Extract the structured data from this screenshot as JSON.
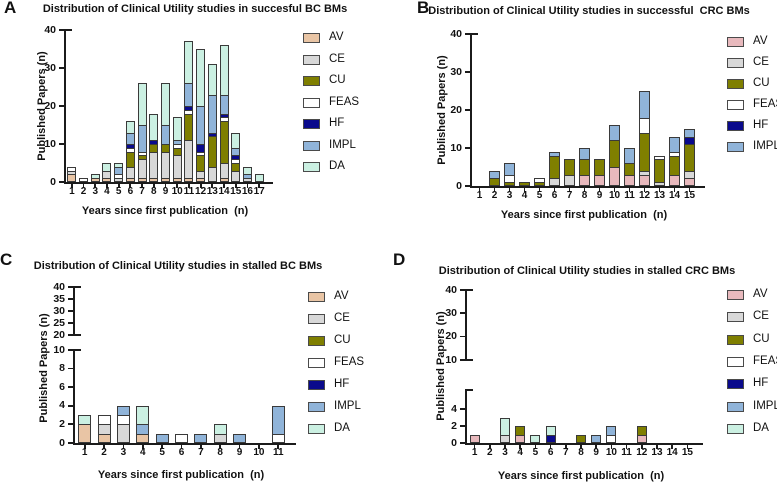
{
  "figure": {
    "panel_labels": [
      "A",
      "B",
      "C",
      "D"
    ]
  },
  "chart_data": [
    {
      "panel_label": "A",
      "type": "bar",
      "stacked": true,
      "title": "Distribution of Clinical Utility studies in succesful BC BMs",
      "xlabel": "Years since first publication  (n)",
      "ylabel": "Published Papers (n)",
      "categories": [
        "1",
        "2",
        "3",
        "4",
        "5",
        "6",
        "7",
        "8",
        "9",
        "10",
        "11",
        "12",
        "13",
        "14",
        "15",
        "16",
        "17"
      ],
      "legend": [
        "AV",
        "CE",
        "CU",
        "FEAS",
        "HF",
        "IMPL",
        "DA"
      ],
      "axis_segments": [
        {
          "min": 0,
          "max": 40,
          "ticks": [
            0,
            10,
            20,
            30,
            40
          ]
        }
      ],
      "colors": {
        "AV": "#E9C5A5",
        "CE": "#D8D8D8",
        "CU": "#7F7F00",
        "FEAS": "#FFFFFF",
        "HF": "#0A0A8C",
        "IMPL": "#90B4D9",
        "DA": "#CBF0E2"
      },
      "series": [
        {
          "name": "AV",
          "values": [
            2,
            0,
            1,
            1,
            0,
            1,
            1,
            1,
            1,
            1,
            1,
            1,
            0,
            1,
            0,
            0,
            0
          ]
        },
        {
          "name": "CE",
          "values": [
            1,
            0,
            0,
            2,
            1,
            3,
            5,
            7,
            7,
            6,
            10,
            2,
            4,
            4,
            3,
            1,
            0
          ]
        },
        {
          "name": "CU",
          "values": [
            0,
            0,
            0,
            0,
            0,
            4,
            1,
            2,
            2,
            2,
            7,
            4,
            8,
            11,
            2,
            0,
            0
          ]
        },
        {
          "name": "FEAS",
          "values": [
            1,
            1,
            0,
            0,
            1,
            1,
            1,
            0,
            0,
            1,
            1,
            1,
            0,
            1,
            1,
            0,
            0
          ]
        },
        {
          "name": "HF",
          "values": [
            0,
            0,
            0,
            0,
            0,
            1,
            0,
            1,
            0,
            0,
            1,
            2,
            1,
            1,
            1,
            0,
            0
          ]
        },
        {
          "name": "IMPL",
          "values": [
            0,
            0,
            0,
            0,
            2,
            3,
            7,
            0,
            5,
            1,
            6,
            10,
            10,
            5,
            2,
            1,
            0
          ]
        },
        {
          "name": "DA",
          "values": [
            0,
            0,
            1,
            2,
            1,
            3,
            11,
            7,
            11,
            6,
            11,
            15,
            8,
            13,
            4,
            2,
            2
          ]
        }
      ]
    },
    {
      "panel_label": "B",
      "type": "bar",
      "stacked": true,
      "title": "Distribution of Clinical Utility studies in successful  CRC BMs",
      "xlabel": "Years since first publication  (n)",
      "ylabel": "Published Papers (n)",
      "categories": [
        "1",
        "2",
        "3",
        "4",
        "5",
        "6",
        "7",
        "8",
        "9",
        "10",
        "11",
        "12",
        "13",
        "14",
        "15"
      ],
      "legend": [
        "AV",
        "CE",
        "CU",
        "FEAS",
        "HF",
        "IMPL"
      ],
      "axis_segments": [
        {
          "min": 0,
          "max": 40,
          "ticks": [
            0,
            10,
            20,
            30,
            40
          ]
        }
      ],
      "colors": {
        "AV": "#E8B9BD",
        "CE": "#D8D8D8",
        "CU": "#7F7F00",
        "FEAS": "#FFFFFF",
        "HF": "#0A0A8C",
        "IMPL": "#90B4D9",
        "DA": "#CBF0E2"
      },
      "series": [
        {
          "name": "AV",
          "values": [
            0,
            0,
            0,
            0,
            0,
            0,
            0,
            3,
            3,
            5,
            3,
            3,
            0,
            3,
            2
          ]
        },
        {
          "name": "CE",
          "values": [
            0,
            0,
            0,
            0,
            0,
            2,
            3,
            0,
            0,
            0,
            0,
            1,
            1,
            0,
            2
          ]
        },
        {
          "name": "CU",
          "values": [
            0,
            2,
            1,
            1,
            1,
            6,
            4,
            4,
            4,
            7,
            3,
            10,
            6,
            5,
            7
          ]
        },
        {
          "name": "FEAS",
          "values": [
            0,
            0,
            2,
            0,
            1,
            0,
            0,
            0,
            0,
            0,
            0,
            4,
            1,
            1,
            0
          ]
        },
        {
          "name": "HF",
          "values": [
            0,
            0,
            0,
            0,
            0,
            0,
            0,
            0,
            0,
            0,
            0,
            0,
            0,
            0,
            2
          ]
        },
        {
          "name": "IMPL",
          "values": [
            0,
            2,
            3,
            0,
            0,
            1,
            0,
            3,
            0,
            4,
            4,
            7,
            0,
            4,
            2
          ]
        }
      ]
    },
    {
      "panel_label": "C",
      "type": "bar",
      "stacked": true,
      "title": "Distribution of Clinical Utility studies in stalled BC BMs",
      "xlabel": "Years since first publication  (n)",
      "ylabel": "Published Papers (n)",
      "categories": [
        "1",
        "2",
        "3",
        "4",
        "5",
        "6",
        "7",
        "8",
        "9",
        "10",
        "11"
      ],
      "legend": [
        "AV",
        "CE",
        "CU",
        "FEAS",
        "HF",
        "IMPL",
        "DA"
      ],
      "axis_segments": [
        {
          "min": 0,
          "max": 10,
          "ticks": [
            0,
            2,
            4,
            6,
            8,
            10
          ]
        },
        {
          "min": 20,
          "max": 40,
          "ticks": [
            20,
            25,
            30,
            35,
            40
          ]
        }
      ],
      "colors": {
        "AV": "#E9C5A5",
        "CE": "#D8D8D8",
        "CU": "#7F7F00",
        "FEAS": "#FFFFFF",
        "HF": "#0A0A8C",
        "IMPL": "#90B4D9",
        "DA": "#CBF0E2"
      },
      "series": [
        {
          "name": "AV",
          "values": [
            2,
            1,
            0,
            1,
            0,
            0,
            0,
            0,
            0,
            0,
            0
          ]
        },
        {
          "name": "CE",
          "values": [
            0,
            1,
            2,
            0,
            0,
            0,
            0,
            1,
            0,
            0,
            0
          ]
        },
        {
          "name": "CU",
          "values": [
            0,
            0,
            0,
            0,
            0,
            0,
            0,
            0,
            0,
            0,
            0
          ]
        },
        {
          "name": "FEAS",
          "values": [
            0,
            1,
            1,
            0,
            0,
            1,
            0,
            0,
            0,
            0,
            1
          ]
        },
        {
          "name": "HF",
          "values": [
            0,
            0,
            0,
            0,
            0,
            0,
            0,
            0,
            0,
            0,
            0
          ]
        },
        {
          "name": "IMPL",
          "values": [
            0,
            0,
            1,
            1,
            1,
            0,
            1,
            0,
            1,
            0,
            3
          ]
        },
        {
          "name": "DA",
          "values": [
            1,
            0,
            0,
            2,
            0,
            0,
            0,
            1,
            0,
            0,
            0
          ]
        }
      ]
    },
    {
      "panel_label": "D",
      "type": "bar",
      "stacked": true,
      "title": "Distribution of Clinical Utility studies in stalled CRC BMs",
      "xlabel": "Years since first publication  (n)",
      "ylabel": "Published Papers (n)",
      "categories": [
        "1",
        "2",
        "3",
        "4",
        "5",
        "6",
        "7",
        "8",
        "9",
        "10",
        "11",
        "12",
        "13",
        "14",
        "15"
      ],
      "legend": [
        "AV",
        "CE",
        "CU",
        "FEAS",
        "HF",
        "IMPL",
        "DA"
      ],
      "axis_segments": [
        {
          "min": 0,
          "max": 5,
          "ticks": [
            0,
            2,
            4
          ]
        },
        {
          "min": 10,
          "max": 40,
          "ticks": [
            10,
            20,
            30,
            40
          ]
        }
      ],
      "colors": {
        "AV": "#E8B9BD",
        "CE": "#D8D8D8",
        "CU": "#7F7F00",
        "FEAS": "#FFFFFF",
        "HF": "#0A0A8C",
        "IMPL": "#90B4D9",
        "DA": "#CBF0E2"
      },
      "series": [
        {
          "name": "AV",
          "values": [
            1,
            0,
            0,
            1,
            0,
            0,
            0,
            0,
            0,
            0,
            0,
            1,
            0,
            0,
            0
          ]
        },
        {
          "name": "CE",
          "values": [
            0,
            0,
            1,
            0,
            0,
            0,
            0,
            0,
            0,
            0,
            0,
            0,
            0,
            0,
            0
          ]
        },
        {
          "name": "CU",
          "values": [
            0,
            0,
            0,
            1,
            0,
            0,
            0,
            1,
            0,
            0,
            0,
            1,
            0,
            0,
            0
          ]
        },
        {
          "name": "FEAS",
          "values": [
            0,
            0,
            0,
            0,
            0,
            0,
            0,
            0,
            0,
            1,
            0,
            0,
            0,
            0,
            0
          ]
        },
        {
          "name": "HF",
          "values": [
            0,
            0,
            0,
            0,
            0,
            1,
            0,
            0,
            0,
            0,
            0,
            0,
            0,
            0,
            0
          ]
        },
        {
          "name": "IMPL",
          "values": [
            0,
            0,
            0,
            0,
            0,
            0,
            0,
            0,
            1,
            1,
            0,
            0,
            0,
            0,
            0
          ]
        },
        {
          "name": "DA",
          "values": [
            0,
            0,
            2,
            0,
            1,
            1,
            0,
            0,
            0,
            0,
            0,
            0,
            0,
            0,
            0
          ]
        }
      ]
    }
  ]
}
